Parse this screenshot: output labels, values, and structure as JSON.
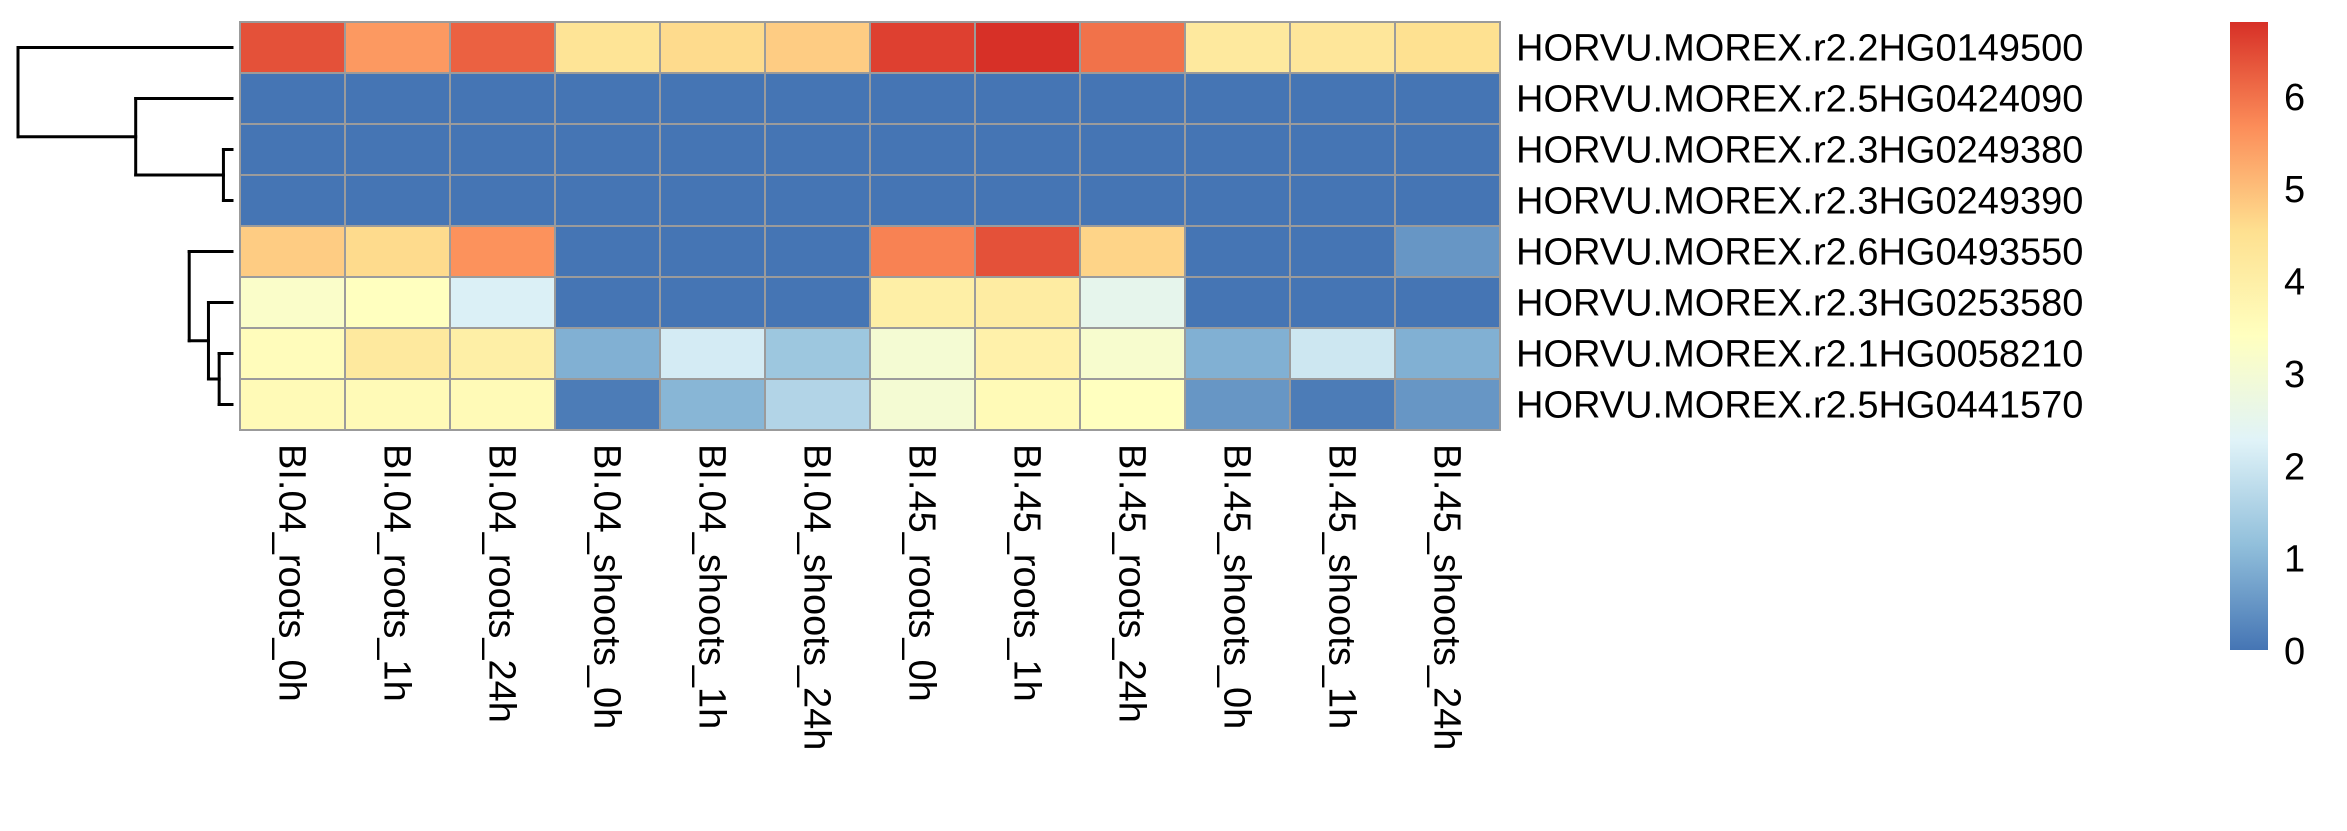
{
  "chart_data": {
    "type": "heatmap",
    "title": "",
    "xlabel": "",
    "ylabel": "",
    "columns": [
      "BI.04_roots_0h",
      "BI.04_roots_1h",
      "BI.04_roots_24h",
      "BI.04_shoots_0h",
      "BI.04_shoots_1h",
      "BI.04_shoots_24h",
      "BI.45_roots_0h",
      "BI.45_roots_1h",
      "BI.45_roots_24h",
      "BI.45_shoots_0h",
      "BI.45_shoots_1h",
      "BI.45_shoots_24h"
    ],
    "rows": [
      "HORVU.MOREX.r2.2HG0149500",
      "HORVU.MOREX.r2.5HG0424090",
      "HORVU.MOREX.r2.3HG0249380",
      "HORVU.MOREX.r2.3HG0249390",
      "HORVU.MOREX.r2.6HG0493550",
      "HORVU.MOREX.r2.3HG0253580",
      "HORVU.MOREX.r2.1HG0058210",
      "HORVU.MOREX.r2.5HG0441570"
    ],
    "values": [
      [
        6.4,
        5.5,
        6.2,
        4.4,
        4.6,
        4.8,
        6.6,
        6.8,
        6.0,
        4.2,
        4.3,
        4.5
      ],
      [
        0.0,
        0.0,
        0.0,
        0.0,
        0.0,
        0.0,
        0.0,
        0.0,
        0.0,
        0.0,
        0.0,
        0.0
      ],
      [
        0.0,
        0.0,
        0.0,
        0.0,
        0.0,
        0.0,
        0.0,
        0.0,
        0.0,
        0.0,
        0.0,
        0.0
      ],
      [
        0.0,
        0.0,
        0.0,
        0.0,
        0.0,
        0.0,
        0.0,
        0.0,
        0.0,
        0.0,
        0.0,
        0.0
      ],
      [
        4.8,
        4.6,
        5.6,
        0.0,
        0.0,
        0.0,
        5.8,
        6.4,
        4.7,
        0.0,
        0.0,
        0.5
      ],
      [
        3.2,
        3.4,
        2.2,
        0.0,
        0.0,
        0.0,
        4.0,
        4.1,
        2.5,
        0.0,
        0.0,
        0.0
      ],
      [
        3.5,
        4.2,
        4.0,
        0.9,
        2.1,
        1.3,
        3.0,
        3.9,
        3.1,
        0.9,
        2.0,
        0.9
      ],
      [
        3.6,
        3.6,
        3.6,
        0.1,
        1.0,
        1.6,
        3.0,
        3.6,
        3.4,
        0.5,
        0.1,
        0.5
      ]
    ],
    "colorbar": {
      "min": 0,
      "max": 6.8,
      "ticks": [
        "0",
        "1",
        "2",
        "3",
        "4",
        "5",
        "6"
      ],
      "colors": [
        "#4575b4",
        "#91bfdb",
        "#e0f3f8",
        "#ffffbf",
        "#fee090",
        "#fc8d59",
        "#d73027"
      ]
    },
    "row_dendrogram": {
      "merges": [
        [
          6,
          7
        ],
        [
          5,
          -1
        ],
        [
          4,
          -2
        ],
        [
          2,
          3
        ],
        [
          1,
          -4
        ],
        [
          0,
          -5
        ]
      ],
      "heights": [
        0.6,
        1.1,
        2.0,
        0.4,
        4.5,
        10.0
      ]
    },
    "grid": true,
    "legend": "right"
  }
}
